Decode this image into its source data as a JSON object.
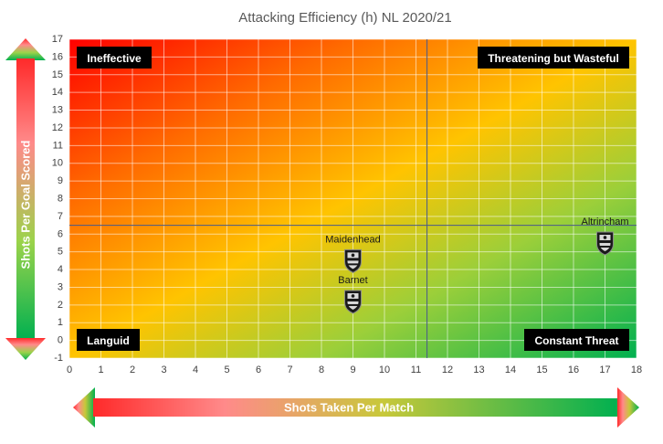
{
  "chart_data": {
    "type": "scatter",
    "title": "Attacking Efficiency (h) NL 2020/21",
    "xlabel": "Shots Taken Per Match",
    "ylabel": "Shots Per Goal Scored",
    "xlim": [
      0,
      18
    ],
    "ylim": [
      -1,
      17
    ],
    "xticks": [
      "0",
      "1",
      "2",
      "3",
      "4",
      "5",
      "6",
      "7",
      "8",
      "9",
      "10",
      "11",
      "12",
      "13",
      "14",
      "15",
      "16",
      "17",
      "18"
    ],
    "yticks": [
      "-1",
      "0",
      "1",
      "2",
      "3",
      "4",
      "5",
      "6",
      "7",
      "8",
      "9",
      "10",
      "11",
      "12",
      "13",
      "14",
      "15",
      "16",
      "17"
    ],
    "grid": true,
    "reference_lines": {
      "x": 11.35,
      "y": 6.5
    },
    "quadrants": [
      {
        "label": "Ineffective",
        "position": "top-left"
      },
      {
        "label": "Threatening but Wasteful",
        "position": "top-right"
      },
      {
        "label": "Languid",
        "position": "bottom-left"
      },
      {
        "label": "Constant Threat",
        "position": "bottom-right"
      }
    ],
    "points": [
      {
        "label": "Altrincham",
        "x": 17.0,
        "y": 5.5
      },
      {
        "label": "Maidenhead",
        "x": 9.0,
        "y": 4.5
      },
      {
        "label": "Barnet",
        "x": 9.0,
        "y": 2.2
      }
    ],
    "gradient_colors": {
      "worst": "#ff0000",
      "mid": "#ffc400",
      "best": "#00b050"
    },
    "marker_icon": "club-crest-icon"
  }
}
